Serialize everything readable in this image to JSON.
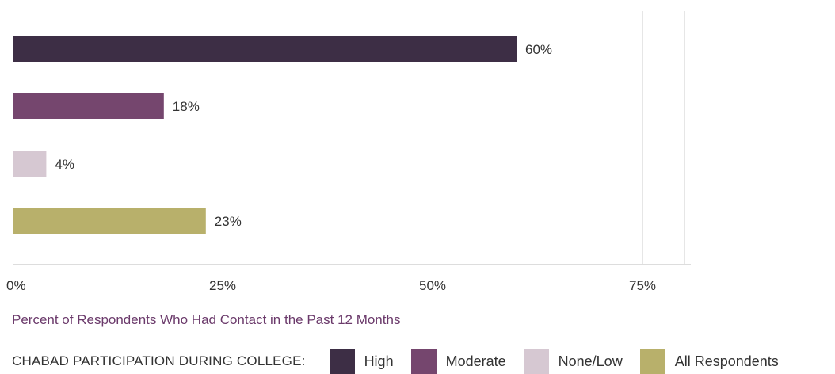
{
  "chart_data": {
    "type": "bar",
    "orientation": "horizontal",
    "categories": [
      "High",
      "Moderate",
      "None/Low",
      "All Respondents"
    ],
    "values": [
      60,
      18,
      4,
      23
    ],
    "value_labels": [
      "60%",
      "18%",
      "4%",
      "23%"
    ],
    "colors": [
      "#3d2e45",
      "#75466e",
      "#d6c8d2",
      "#b8b06b"
    ],
    "xlabel": "Percent of Respondents Who Had Contact in the Past 12 Months",
    "xlim": [
      0,
      80
    ],
    "xticks": [
      0,
      25,
      50,
      75
    ],
    "xtick_labels": [
      "0%",
      "25%",
      "50%",
      "75%"
    ],
    "minor_grid_step": 5,
    "grid": true,
    "legend_position": "bottom"
  },
  "axis_title": "Percent of Respondents Who Had Contact in the Past 12 Months",
  "legend": {
    "title": "CHABAD PARTICIPATION DURING COLLEGE:",
    "items": [
      {
        "label": "High",
        "color": "#3d2e45"
      },
      {
        "label": "Moderate",
        "color": "#75466e"
      },
      {
        "label": "None/Low",
        "color": "#d6c8d2"
      },
      {
        "label": "All Respondents",
        "color": "#b8b06b"
      }
    ]
  }
}
